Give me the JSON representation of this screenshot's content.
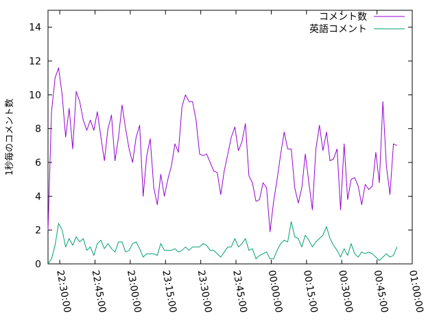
{
  "chart_data": {
    "type": "line",
    "title": "",
    "xlabel": "",
    "ylabel": "1秒毎のコメント数",
    "ylim": [
      0,
      15
    ],
    "yticks": [
      0,
      2,
      4,
      6,
      8,
      10,
      12,
      14
    ],
    "x_range": [
      "22:25:00",
      "01:00:00"
    ],
    "x_tick_labels": [
      "22:30:00",
      "22:45:00",
      "23:00:00",
      "23:15:00",
      "23:30:00",
      "23:45:00",
      "00:00:00",
      "00:15:00",
      "00:30:00",
      "00:45:00",
      "01:00:00"
    ],
    "grid": false,
    "legend_position": "top-right",
    "x_interval_minutes": 1.5,
    "x_start": "22:25:00",
    "series": [
      {
        "name": "コメント数",
        "color": "#9400d3",
        "values": [
          2.0,
          9.0,
          11.0,
          11.6,
          10.0,
          7.5,
          9.2,
          6.8,
          10.2,
          9.6,
          8.5,
          7.9,
          8.5,
          7.9,
          9.0,
          7.5,
          6.1,
          8.0,
          8.8,
          6.1,
          7.5,
          9.4,
          8.0,
          6.8,
          6.0,
          7.5,
          8.2,
          4.0,
          6.4,
          7.4,
          4.5,
          3.5,
          5.3,
          4.0,
          5.0,
          5.8,
          7.1,
          6.6,
          9.3,
          10.0,
          9.6,
          9.6,
          8.5,
          6.5,
          6.4,
          6.5,
          6.0,
          5.5,
          5.4,
          4.1,
          5.5,
          6.5,
          7.5,
          8.1,
          6.7,
          7.2,
          8.3,
          5.2,
          4.8,
          3.7,
          3.8,
          4.8,
          4.5,
          1.9,
          3.7,
          5.0,
          6.5,
          7.8,
          6.8,
          6.8,
          4.5,
          3.6,
          4.5,
          6.5,
          4.8,
          3.2,
          6.8,
          8.2,
          6.7,
          7.8,
          6.1,
          6.2,
          6.8,
          3.2,
          7.1,
          3.8,
          5.0,
          5.1,
          4.6,
          3.5,
          4.7,
          4.4,
          4.6,
          6.6,
          4.8,
          9.6,
          5.8,
          4.1,
          7.1,
          7.0
        ]
      },
      {
        "name": "英語コメント",
        "color": "#009e73",
        "values": [
          0.0,
          0.3,
          1.1,
          2.4,
          2.0,
          1.0,
          1.5,
          1.1,
          1.6,
          1.3,
          1.5,
          0.8,
          1.0,
          0.5,
          1.2,
          1.4,
          0.9,
          1.2,
          0.9,
          0.7,
          1.3,
          1.3,
          0.7,
          0.8,
          1.2,
          1.3,
          0.9,
          0.4,
          0.6,
          0.6,
          0.6,
          0.5,
          1.2,
          0.8,
          0.8,
          0.8,
          0.9,
          0.7,
          0.8,
          1.0,
          0.8,
          1.0,
          1.0,
          1.0,
          1.2,
          1.1,
          0.8,
          0.8,
          0.6,
          0.4,
          0.7,
          1.0,
          1.0,
          1.5,
          1.0,
          1.2,
          1.5,
          0.8,
          0.9,
          0.3,
          0.5,
          0.6,
          0.7,
          0.3,
          0.3,
          0.8,
          1.2,
          1.4,
          1.3,
          2.5,
          1.6,
          1.5,
          1.0,
          1.7,
          1.4,
          1.0,
          1.3,
          1.5,
          1.7,
          2.2,
          1.5,
          1.1,
          0.8,
          0.4,
          0.9,
          0.5,
          1.2,
          0.6,
          0.4,
          0.7,
          0.6,
          0.7,
          0.6,
          0.4,
          0.2,
          0.4,
          0.6,
          0.4,
          0.5,
          1.0
        ]
      }
    ]
  }
}
